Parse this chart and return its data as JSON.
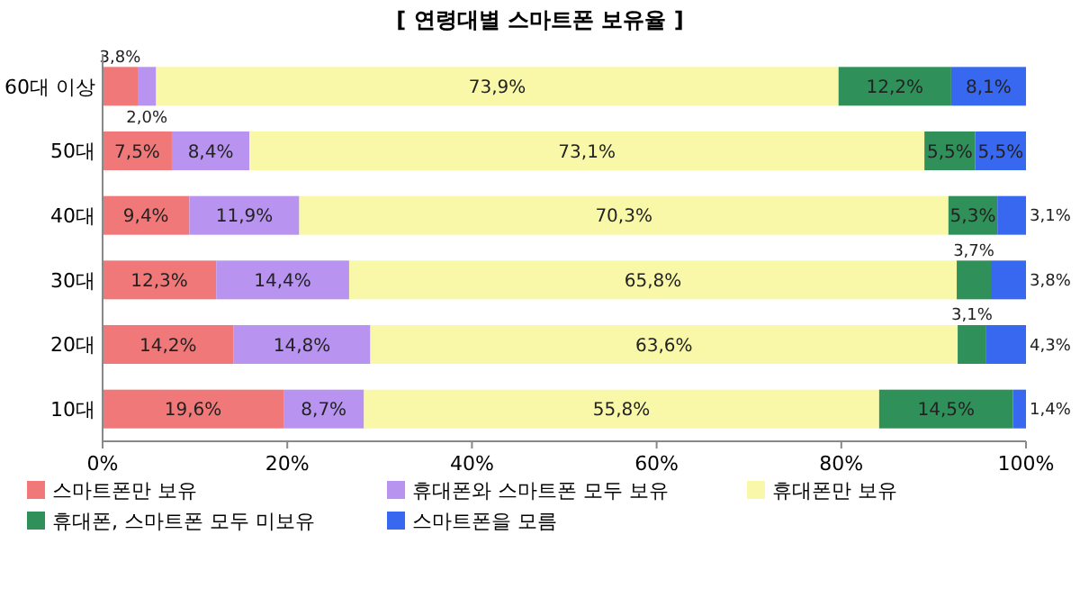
{
  "chart_data": {
    "type": "bar",
    "orientation": "horizontal",
    "stacked": true,
    "title": "[ 연령대별 스마트폰 보유율 ]",
    "categories": [
      "60대 이상",
      "50대",
      "40대",
      "30대",
      "20대",
      "10대"
    ],
    "xlim": [
      0,
      100
    ],
    "xticks": [
      {
        "value": 0,
        "label": "0%"
      },
      {
        "value": 20,
        "label": "20%"
      },
      {
        "value": 40,
        "label": "40%"
      },
      {
        "value": 60,
        "label": "60%"
      },
      {
        "value": 80,
        "label": "80%"
      },
      {
        "value": 100,
        "label": "100%"
      }
    ],
    "legend": "bottom",
    "series": [
      {
        "name": "스마트폰만 보유",
        "color": "#f07878",
        "values": [
          3.8,
          7.5,
          9.4,
          12.3,
          14.2,
          19.6
        ],
        "value_labels": [
          "3,8%",
          "7,5%",
          "9,4%",
          "12,3%",
          "14,2%",
          "19,6%"
        ]
      },
      {
        "name": "휴대폰와 스마트폰 모두 보유",
        "color": "#b894f0",
        "values": [
          2.0,
          8.4,
          11.9,
          14.4,
          14.8,
          8.7
        ],
        "value_labels": [
          "2,0%",
          "8,4%",
          "11,9%",
          "14,4%",
          "14,8%",
          "8,7%"
        ]
      },
      {
        "name": "휴대폰만 보유",
        "color": "#f8f8a8",
        "values": [
          73.9,
          73.1,
          70.3,
          65.8,
          63.6,
          55.8
        ],
        "value_labels": [
          "73,9%",
          "73,1%",
          "70,3%",
          "65,8%",
          "63,6%",
          "55,8%"
        ]
      },
      {
        "name": "휴대폰, 스마트폰 모두 미보유",
        "color": "#30905a",
        "values": [
          12.2,
          5.5,
          5.3,
          3.7,
          3.1,
          14.5
        ],
        "value_labels": [
          "12,2%",
          "5,5%",
          "5,3%",
          "3,7%",
          "3,1%",
          "14,5%"
        ]
      },
      {
        "name": "스마트폰을 모름",
        "color": "#3868f0",
        "values": [
          8.1,
          5.5,
          3.1,
          3.8,
          4.3,
          1.4
        ],
        "value_labels": [
          "8,1%",
          "5,5%",
          "3,1%",
          "3,8%",
          "4,3%",
          "1,4%"
        ]
      }
    ]
  }
}
